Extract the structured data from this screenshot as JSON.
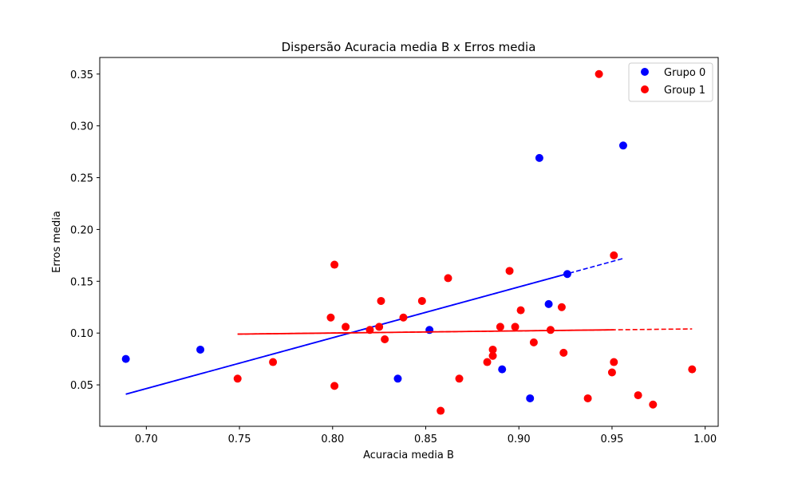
{
  "chart_data": {
    "type": "scatter",
    "title": "Dispersão Acuracia media B x Erros media",
    "xlabel": "Acuracia media B",
    "ylabel": "Erros media",
    "xlim": [
      0.675,
      1.007
    ],
    "ylim": [
      0.01,
      0.366
    ],
    "xticks": [
      0.7,
      0.75,
      0.8,
      0.85,
      0.9,
      0.95,
      1.0
    ],
    "xtick_labels": [
      "0.70",
      "0.75",
      "0.80",
      "0.85",
      "0.90",
      "0.95",
      "1.00"
    ],
    "yticks": [
      0.05,
      0.1,
      0.15,
      0.2,
      0.25,
      0.3,
      0.35
    ],
    "ytick_labels": [
      "0.05",
      "0.10",
      "0.15",
      "0.20",
      "0.25",
      "0.30",
      "0.35"
    ],
    "legend_position": "top-right",
    "series": [
      {
        "name": "Grupo 0",
        "color": "#0000ff",
        "points": [
          [
            0.689,
            0.075
          ],
          [
            0.729,
            0.084
          ],
          [
            0.835,
            0.056
          ],
          [
            0.852,
            0.103
          ],
          [
            0.891,
            0.065
          ],
          [
            0.906,
            0.037
          ],
          [
            0.911,
            0.269
          ],
          [
            0.916,
            0.128
          ],
          [
            0.926,
            0.157
          ],
          [
            0.956,
            0.281
          ]
        ],
        "trend": {
          "x_start": 0.689,
          "y_start": 0.041,
          "x_solid_end": 0.926,
          "x_end": 0.956,
          "y_end": 0.172
        }
      },
      {
        "name": "Group 1",
        "color": "#ff0000",
        "points": [
          [
            0.749,
            0.056
          ],
          [
            0.768,
            0.072
          ],
          [
            0.799,
            0.115
          ],
          [
            0.801,
            0.166
          ],
          [
            0.801,
            0.049
          ],
          [
            0.807,
            0.106
          ],
          [
            0.82,
            0.103
          ],
          [
            0.825,
            0.106
          ],
          [
            0.826,
            0.131
          ],
          [
            0.828,
            0.094
          ],
          [
            0.838,
            0.115
          ],
          [
            0.848,
            0.131
          ],
          [
            0.858,
            0.025
          ],
          [
            0.862,
            0.153
          ],
          [
            0.868,
            0.056
          ],
          [
            0.883,
            0.072
          ],
          [
            0.886,
            0.084
          ],
          [
            0.886,
            0.078
          ],
          [
            0.89,
            0.106
          ],
          [
            0.895,
            0.16
          ],
          [
            0.898,
            0.106
          ],
          [
            0.901,
            0.122
          ],
          [
            0.908,
            0.091
          ],
          [
            0.917,
            0.103
          ],
          [
            0.923,
            0.125
          ],
          [
            0.924,
            0.081
          ],
          [
            0.937,
            0.037
          ],
          [
            0.943,
            0.35
          ],
          [
            0.95,
            0.062
          ],
          [
            0.951,
            0.175
          ],
          [
            0.951,
            0.072
          ],
          [
            0.964,
            0.04
          ],
          [
            0.972,
            0.031
          ],
          [
            0.993,
            0.065
          ]
        ],
        "trend": {
          "x_start": 0.749,
          "y_start": 0.099,
          "x_solid_end": 0.951,
          "x_end": 0.993,
          "y_end": 0.104
        }
      }
    ]
  }
}
